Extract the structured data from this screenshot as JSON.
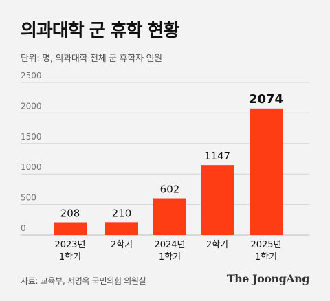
{
  "header": {
    "title": "의과대학 군 휴학 현황",
    "subtitle": "단위: 명, 의과대학 전체 군 휴학자 인원"
  },
  "footer": {
    "source": "자료: 교육부, 서명옥 국민의힘 의원실",
    "brand": "The JoongAng"
  },
  "colors": {
    "bar": "#ff3d14",
    "grid": "#d4d4d4",
    "axis_text": "#777777",
    "label_text": "#111111"
  },
  "chart_data": {
    "type": "bar",
    "title": "의과대학 군 휴학 현황",
    "unit": "명",
    "categories": [
      [
        "2023년",
        "1학기"
      ],
      [
        "2학기"
      ],
      [
        "2024년",
        "1학기"
      ],
      [
        "2학기"
      ],
      [
        "2025년",
        "1학기"
      ]
    ],
    "values": [
      208,
      210,
      602,
      1147,
      2074
    ],
    "highlight_index": 4,
    "yticks": [
      0,
      500,
      1000,
      1500,
      2000,
      2500
    ],
    "ylim": [
      0,
      2500
    ],
    "grid": true,
    "legend": "none"
  }
}
